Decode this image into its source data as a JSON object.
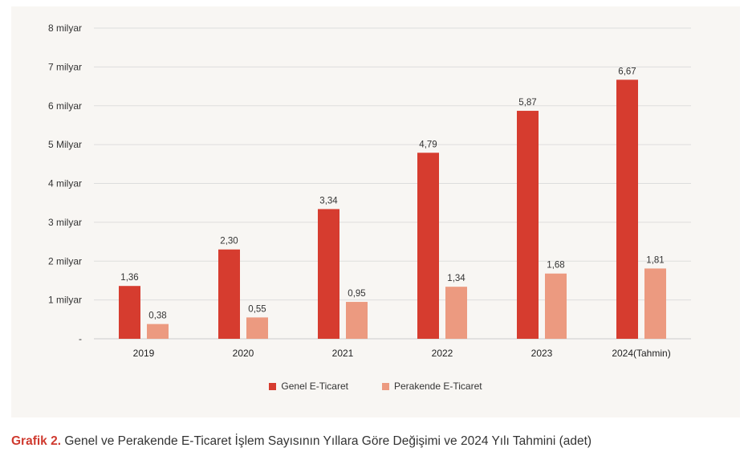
{
  "colors": {
    "genel": "#d63c2f",
    "perakende": "#ec9a80",
    "accent": "#cf3a2f"
  },
  "caption": {
    "prefix": "Grafik 2.",
    "text": " Genel ve Perakende E-Ticaret İşlem Sayısının Yıllara Göre Değişimi ve 2024 Yılı Tahmini (adet)"
  },
  "chart_data": {
    "type": "bar",
    "title": "",
    "xlabel": "",
    "ylabel": "",
    "categories": [
      "2019",
      "2020",
      "2021",
      "2022",
      "2023",
      "2024(Tahmin)"
    ],
    "series": [
      {
        "name": "Genel E-Ticaret",
        "values": [
          1.36,
          2.3,
          3.34,
          4.79,
          5.87,
          6.67
        ],
        "labels": [
          "1,36",
          "2,30",
          "3,34",
          "4,79",
          "5,87",
          "6,67"
        ]
      },
      {
        "name": "Perakende E-Ticaret",
        "values": [
          0.38,
          0.55,
          0.95,
          1.34,
          1.68,
          1.81
        ],
        "labels": [
          "0,38",
          "0,55",
          "0,95",
          "1,34",
          "1,68",
          "1,81"
        ]
      }
    ],
    "ylim": [
      0,
      8
    ],
    "yticks": [
      0,
      1,
      2,
      3,
      4,
      5,
      6,
      7,
      8
    ],
    "ytick_labels": [
      "-",
      "1 milyar",
      "2 milyar",
      "3 milyar",
      "4 milyar",
      "5 Milyar",
      "6 milyar",
      "7 milyar",
      "8 milyar"
    ],
    "grid": true,
    "legend_position": "bottom-center"
  }
}
